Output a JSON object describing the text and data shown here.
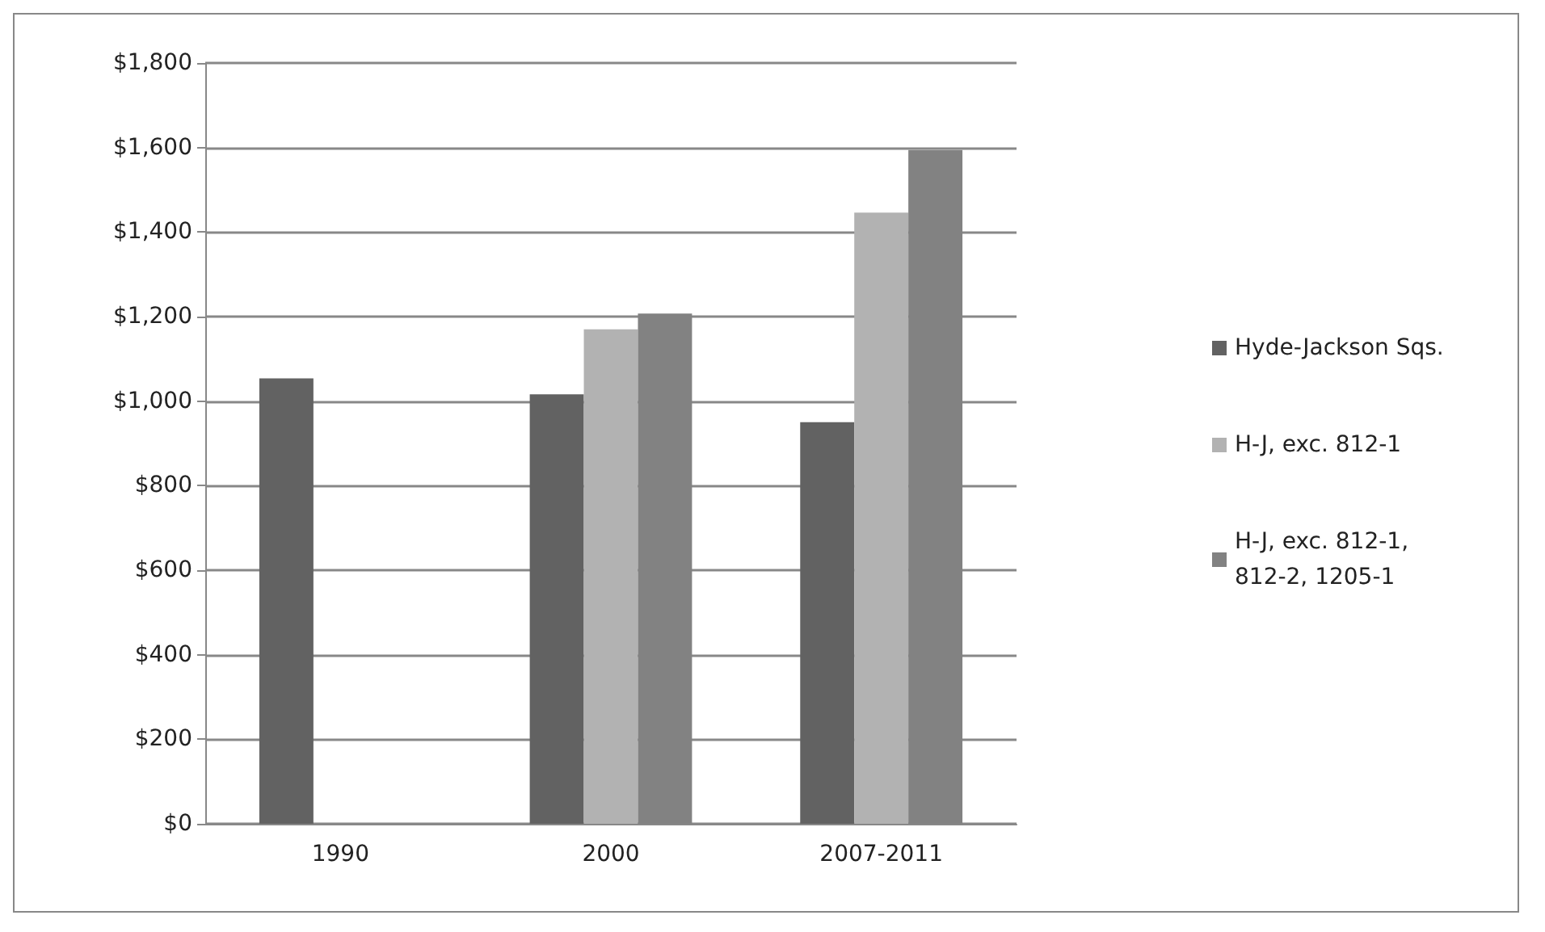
{
  "chart_data": {
    "type": "bar",
    "categories": [
      "1990",
      "2000",
      "2007-2011"
    ],
    "series": [
      {
        "name": "Hyde-Jackson Sqs.",
        "color": "#626262",
        "values": [
          1054,
          1016,
          950
        ]
      },
      {
        "name": "H-J, exc. 812-1",
        "color": "#b2b2b2",
        "values": [
          null,
          1170,
          1446
        ]
      },
      {
        "name": "H-J, exc. 812-1, 812-2, 1205-1",
        "color": "#828282",
        "values": [
          null,
          1207,
          1594
        ]
      }
    ],
    "ylim": [
      0,
      1800
    ],
    "yticks": [
      {
        "value": 0,
        "label": "$0"
      },
      {
        "value": 200,
        "label": "$200"
      },
      {
        "value": 400,
        "label": "$400"
      },
      {
        "value": 600,
        "label": "$600"
      },
      {
        "value": 800,
        "label": "$800"
      },
      {
        "value": 1000,
        "label": "$1,000"
      },
      {
        "value": 1200,
        "label": "$1,200"
      },
      {
        "value": 1400,
        "label": "$1,400"
      },
      {
        "value": 1600,
        "label": "$1,600"
      },
      {
        "value": 1800,
        "label": "$1,800"
      }
    ],
    "grid": "y",
    "legend": "right"
  }
}
